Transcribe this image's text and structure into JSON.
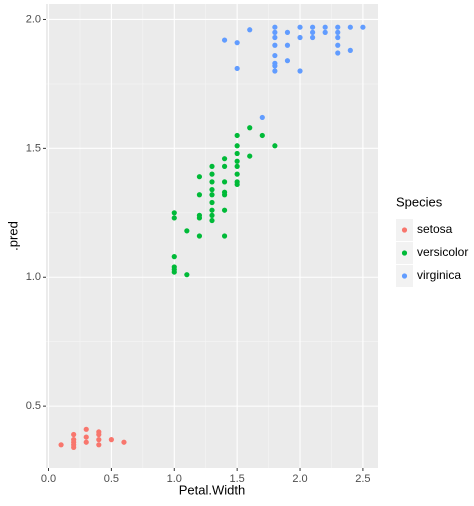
{
  "chart_data": {
    "type": "scatter",
    "x_label": "Petal.Width",
    "y_label": ".pred",
    "legend_title": "Species",
    "legend": "right",
    "grid": true,
    "xlim": [
      -0.02,
      2.62
    ],
    "ylim": [
      0.26,
      2.06
    ],
    "xticks": [
      {
        "value": 0,
        "label": "0.0"
      },
      0.5,
      {
        "value": 1,
        "label": "1.0"
      },
      1.5,
      {
        "value": 2,
        "label": "2.0"
      },
      2.5
    ],
    "yticks": [
      0.5,
      {
        "value": 1,
        "label": "1.0"
      },
      1.5,
      {
        "value": 2,
        "label": "2.0"
      }
    ],
    "series": [
      {
        "name": "setosa",
        "color": "#F8766D",
        "x": [
          0.1,
          0.2,
          0.2,
          0.2,
          0.2,
          0.2,
          0.3,
          0.3,
          0.3,
          0.4,
          0.4,
          0.4,
          0.4,
          0.5,
          0.6
        ],
        "y": [
          0.35,
          0.34,
          0.35,
          0.36,
          0.37,
          0.39,
          0.36,
          0.41,
          0.38,
          0.35,
          0.37,
          0.4,
          0.39,
          0.37,
          0.36
        ]
      },
      {
        "name": "versicolor",
        "color": "#00BA38",
        "x": [
          1.0,
          1.0,
          1.0,
          1.0,
          1.0,
          1.0,
          1.1,
          1.1,
          1.2,
          1.2,
          1.2,
          1.2,
          1.2,
          1.3,
          1.3,
          1.3,
          1.3,
          1.3,
          1.3,
          1.3,
          1.3,
          1.3,
          1.4,
          1.4,
          1.4,
          1.4,
          1.4,
          1.4,
          1.4,
          1.5,
          1.5,
          1.5,
          1.5,
          1.5,
          1.5,
          1.5,
          1.5,
          1.6,
          1.6,
          1.7,
          1.8
        ],
        "y": [
          1.25,
          1.23,
          1.08,
          1.04,
          1.03,
          1.02,
          1.18,
          1.01,
          1.39,
          1.32,
          1.24,
          1.23,
          1.16,
          1.43,
          1.4,
          1.37,
          1.34,
          1.32,
          1.29,
          1.26,
          1.24,
          1.22,
          1.46,
          1.43,
          1.37,
          1.33,
          1.32,
          1.26,
          1.16,
          1.55,
          1.51,
          1.48,
          1.45,
          1.43,
          1.4,
          1.37,
          1.36,
          1.58,
          1.47,
          1.55,
          1.51
        ]
      },
      {
        "name": "virginica",
        "color": "#619CFF",
        "x": [
          1.7,
          1.4,
          1.5,
          1.5,
          1.6,
          1.8,
          1.8,
          1.8,
          1.8,
          1.8,
          1.8,
          1.8,
          1.8,
          1.9,
          1.9,
          1.9,
          2.0,
          2.0,
          2.0,
          2.1,
          2.1,
          2.1,
          2.2,
          2.2,
          2.3,
          2.3,
          2.3,
          2.3,
          2.3,
          2.4,
          2.4,
          2.5
        ],
        "y": [
          1.62,
          1.92,
          1.91,
          1.81,
          1.96,
          1.97,
          1.95,
          1.93,
          1.9,
          1.86,
          1.83,
          1.82,
          1.8,
          1.95,
          1.9,
          1.84,
          1.97,
          1.93,
          1.8,
          1.97,
          1.95,
          1.93,
          1.97,
          1.95,
          1.97,
          1.95,
          1.93,
          1.9,
          1.87,
          1.97,
          1.88,
          1.97
        ]
      }
    ]
  }
}
